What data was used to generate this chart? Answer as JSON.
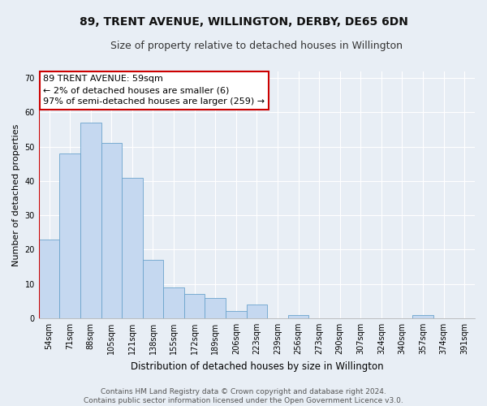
{
  "title": "89, TRENT AVENUE, WILLINGTON, DERBY, DE65 6DN",
  "subtitle": "Size of property relative to detached houses in Willington",
  "xlabel": "Distribution of detached houses by size in Willington",
  "ylabel": "Number of detached properties",
  "categories": [
    "54sqm",
    "71sqm",
    "88sqm",
    "105sqm",
    "121sqm",
    "138sqm",
    "155sqm",
    "172sqm",
    "189sqm",
    "206sqm",
    "223sqm",
    "239sqm",
    "256sqm",
    "273sqm",
    "290sqm",
    "307sqm",
    "324sqm",
    "340sqm",
    "357sqm",
    "374sqm",
    "391sqm"
  ],
  "values": [
    23,
    48,
    57,
    51,
    41,
    17,
    9,
    7,
    6,
    2,
    4,
    0,
    1,
    0,
    0,
    0,
    0,
    0,
    1,
    0,
    0
  ],
  "bar_color": "#c5d8f0",
  "bar_edge_color": "#6ba3cc",
  "annotation_text": "89 TRENT AVENUE: 59sqm\n← 2% of detached houses are smaller (6)\n97% of semi-detached houses are larger (259) →",
  "annotation_box_color": "#ffffff",
  "annotation_box_edge": "#cc0000",
  "red_line_x": -0.5,
  "ylim": [
    0,
    72
  ],
  "yticks": [
    0,
    10,
    20,
    30,
    40,
    50,
    60,
    70
  ],
  "background_color": "#e8eef5",
  "grid_color": "#ffffff",
  "footer_text": "Contains HM Land Registry data © Crown copyright and database right 2024.\nContains public sector information licensed under the Open Government Licence v3.0.",
  "title_fontsize": 10,
  "subtitle_fontsize": 9,
  "xlabel_fontsize": 8.5,
  "ylabel_fontsize": 8,
  "tick_fontsize": 7,
  "annotation_fontsize": 8,
  "footer_fontsize": 6.5
}
